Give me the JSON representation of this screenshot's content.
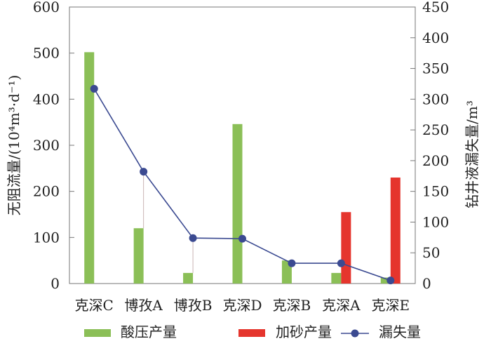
{
  "chart_data": {
    "type": "bar",
    "categories": [
      "克深C",
      "博孜A",
      "博孜B",
      "克深D",
      "克深B",
      "克深A",
      "克深E"
    ],
    "series": [
      {
        "name": "酸压产量",
        "kind": "bar",
        "axis": "left",
        "color": "#8bbf57",
        "values": [
          502,
          120,
          23,
          346,
          50,
          23,
          13
        ]
      },
      {
        "name": "加砂产量",
        "kind": "bar",
        "axis": "left",
        "color": "#e5352d",
        "values": [
          null,
          null,
          null,
          null,
          null,
          155,
          230
        ]
      },
      {
        "name": "漏失量",
        "kind": "line",
        "axis": "right",
        "color": "#3b4a91",
        "values": [
          317,
          182,
          74,
          73,
          33,
          33,
          5
        ]
      }
    ],
    "ylabel": "无阻流量/(10⁴m³·d⁻¹)",
    "y2label": "钻井液漏失量/m³",
    "ylim": [
      0,
      600
    ],
    "y2lim": [
      0,
      450
    ],
    "yticks": [
      "0",
      "100",
      "200",
      "300",
      "400",
      "500",
      "600"
    ],
    "y2ticks": [
      "0",
      "50",
      "100",
      "150",
      "200",
      "250",
      "300",
      "350",
      "400",
      "450"
    ],
    "grid": false,
    "legend_position": "bottom"
  }
}
